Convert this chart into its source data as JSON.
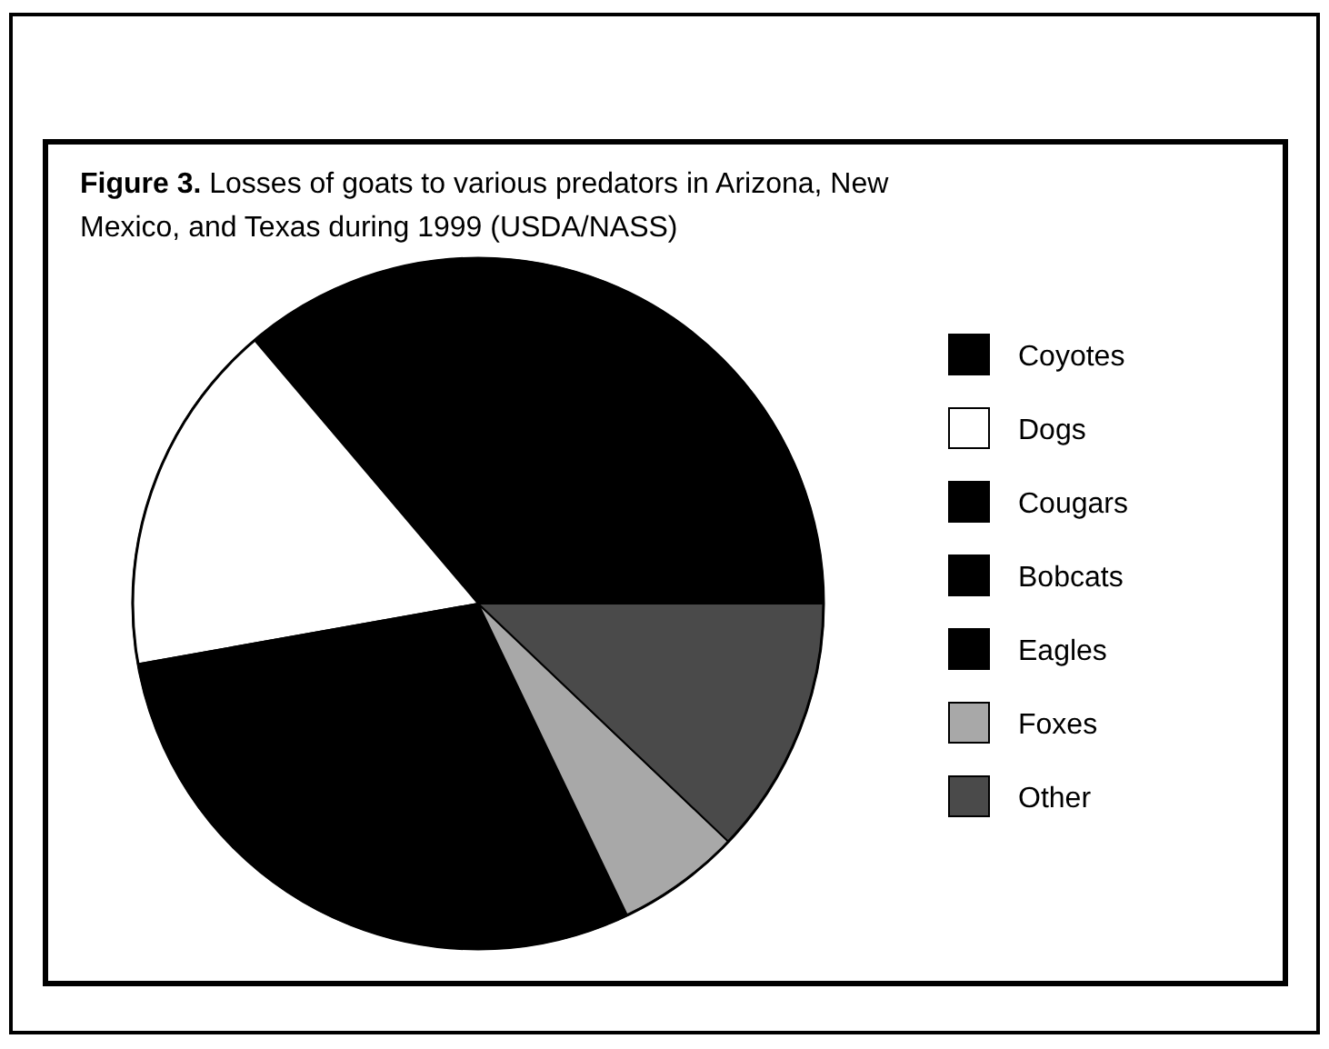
{
  "chart_data": {
    "type": "pie",
    "title": "Figure 3. Losses of goats to various predators in Arizona, New Mexico, and Texas during 1999 (USDA/NASS)",
    "categories": [
      "Coyotes",
      "Dogs",
      "Cougars",
      "Bobcats",
      "Eagles",
      "Foxes",
      "Other"
    ],
    "values": [
      36.2,
      16.6,
      9.3,
      17,
      3,
      5.8,
      12.1
    ],
    "colors": [
      "#000000",
      "#ffffff",
      "#000000",
      "#000000",
      "#000000",
      "#a8a8a8",
      "#4a4a4a"
    ],
    "legend": "right"
  }
}
